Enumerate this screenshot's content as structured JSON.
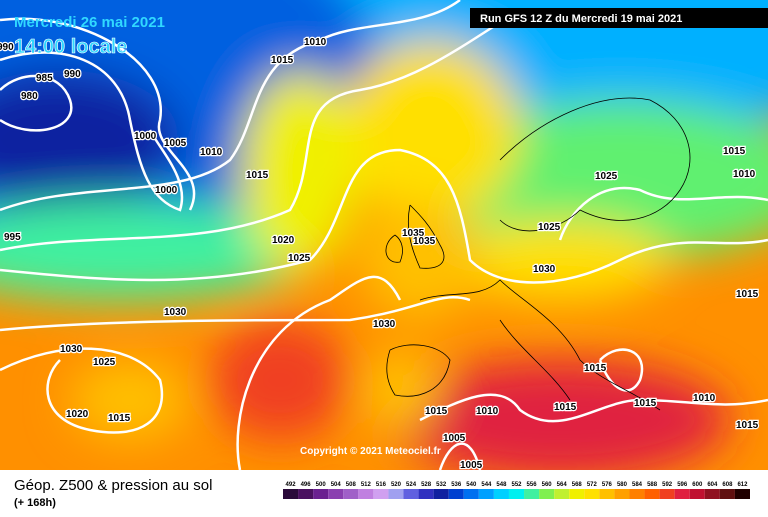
{
  "header": {
    "date": "Mercredi 26 mai 2021",
    "time": "14:00 locale",
    "run": "Run GFS 12 Z du Mercredi 19 mai 2021"
  },
  "copyright": "Copyright © 2021 Meteociel.fr",
  "footer": {
    "title": "Géop. Z500 & pression au sol",
    "lead": "(+ 168h)"
  },
  "isobar_labels": [
    "990",
    "985",
    "990",
    "980",
    "1000",
    "1005",
    "1010",
    "1000",
    "1015",
    "995",
    "1020",
    "1025",
    "1030",
    "1030",
    "1030",
    "1025",
    "1020",
    "1015",
    "1035",
    "1035",
    "1030",
    "1025",
    "1025",
    "1015",
    "1010",
    "1015",
    "1015",
    "1015",
    "1010",
    "1015",
    "1015",
    "1010",
    "1015",
    "1005",
    "1005",
    "1010",
    "1015"
  ],
  "legend": {
    "values": [
      492,
      496,
      500,
      504,
      508,
      512,
      516,
      520,
      524,
      528,
      532,
      536,
      540,
      544,
      548,
      552,
      556,
      560,
      564,
      568,
      572,
      576,
      580,
      584,
      588,
      592,
      596,
      600,
      604,
      608,
      612
    ],
    "colors": [
      "#2a0a3a",
      "#4a1060",
      "#6a2090",
      "#8a40b0",
      "#a060c8",
      "#c080e0",
      "#d0a0f0",
      "#a0a0f0",
      "#6060e0",
      "#3030c0",
      "#1020a0",
      "#0040d0",
      "#0070f0",
      "#00a0ff",
      "#00d0ff",
      "#00f0f0",
      "#40f0a0",
      "#80f050",
      "#c0f030",
      "#f0f000",
      "#ffe000",
      "#ffc000",
      "#ffa000",
      "#ff8000",
      "#ff6000",
      "#f04020",
      "#e02040",
      "#c01030",
      "#901020",
      "#601010",
      "#200000"
    ]
  }
}
